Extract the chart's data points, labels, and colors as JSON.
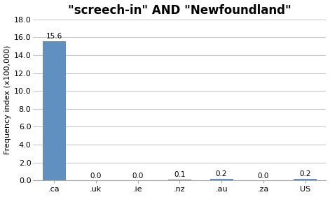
{
  "title": "\"screech-in\" AND \"Newfoundland\"",
  "categories": [
    ".ca",
    ".uk",
    ".ie",
    ".nz",
    ".au",
    ".za",
    "US"
  ],
  "values": [
    15.6,
    0.0,
    0.0,
    0.1,
    0.2,
    0.0,
    0.2
  ],
  "bar_color": "#6090c0",
  "ylabel": "Frequency index (x100,000)",
  "ylim": [
    0,
    18.0
  ],
  "yticks": [
    0.0,
    2.0,
    4.0,
    6.0,
    8.0,
    10.0,
    12.0,
    14.0,
    16.0,
    18.0
  ],
  "background_color": "#ffffff",
  "grid_color": "#c8c8c8",
  "title_fontsize": 12,
  "axis_fontsize": 8,
  "label_fontsize": 7.5,
  "tick_label_fontsize": 8
}
